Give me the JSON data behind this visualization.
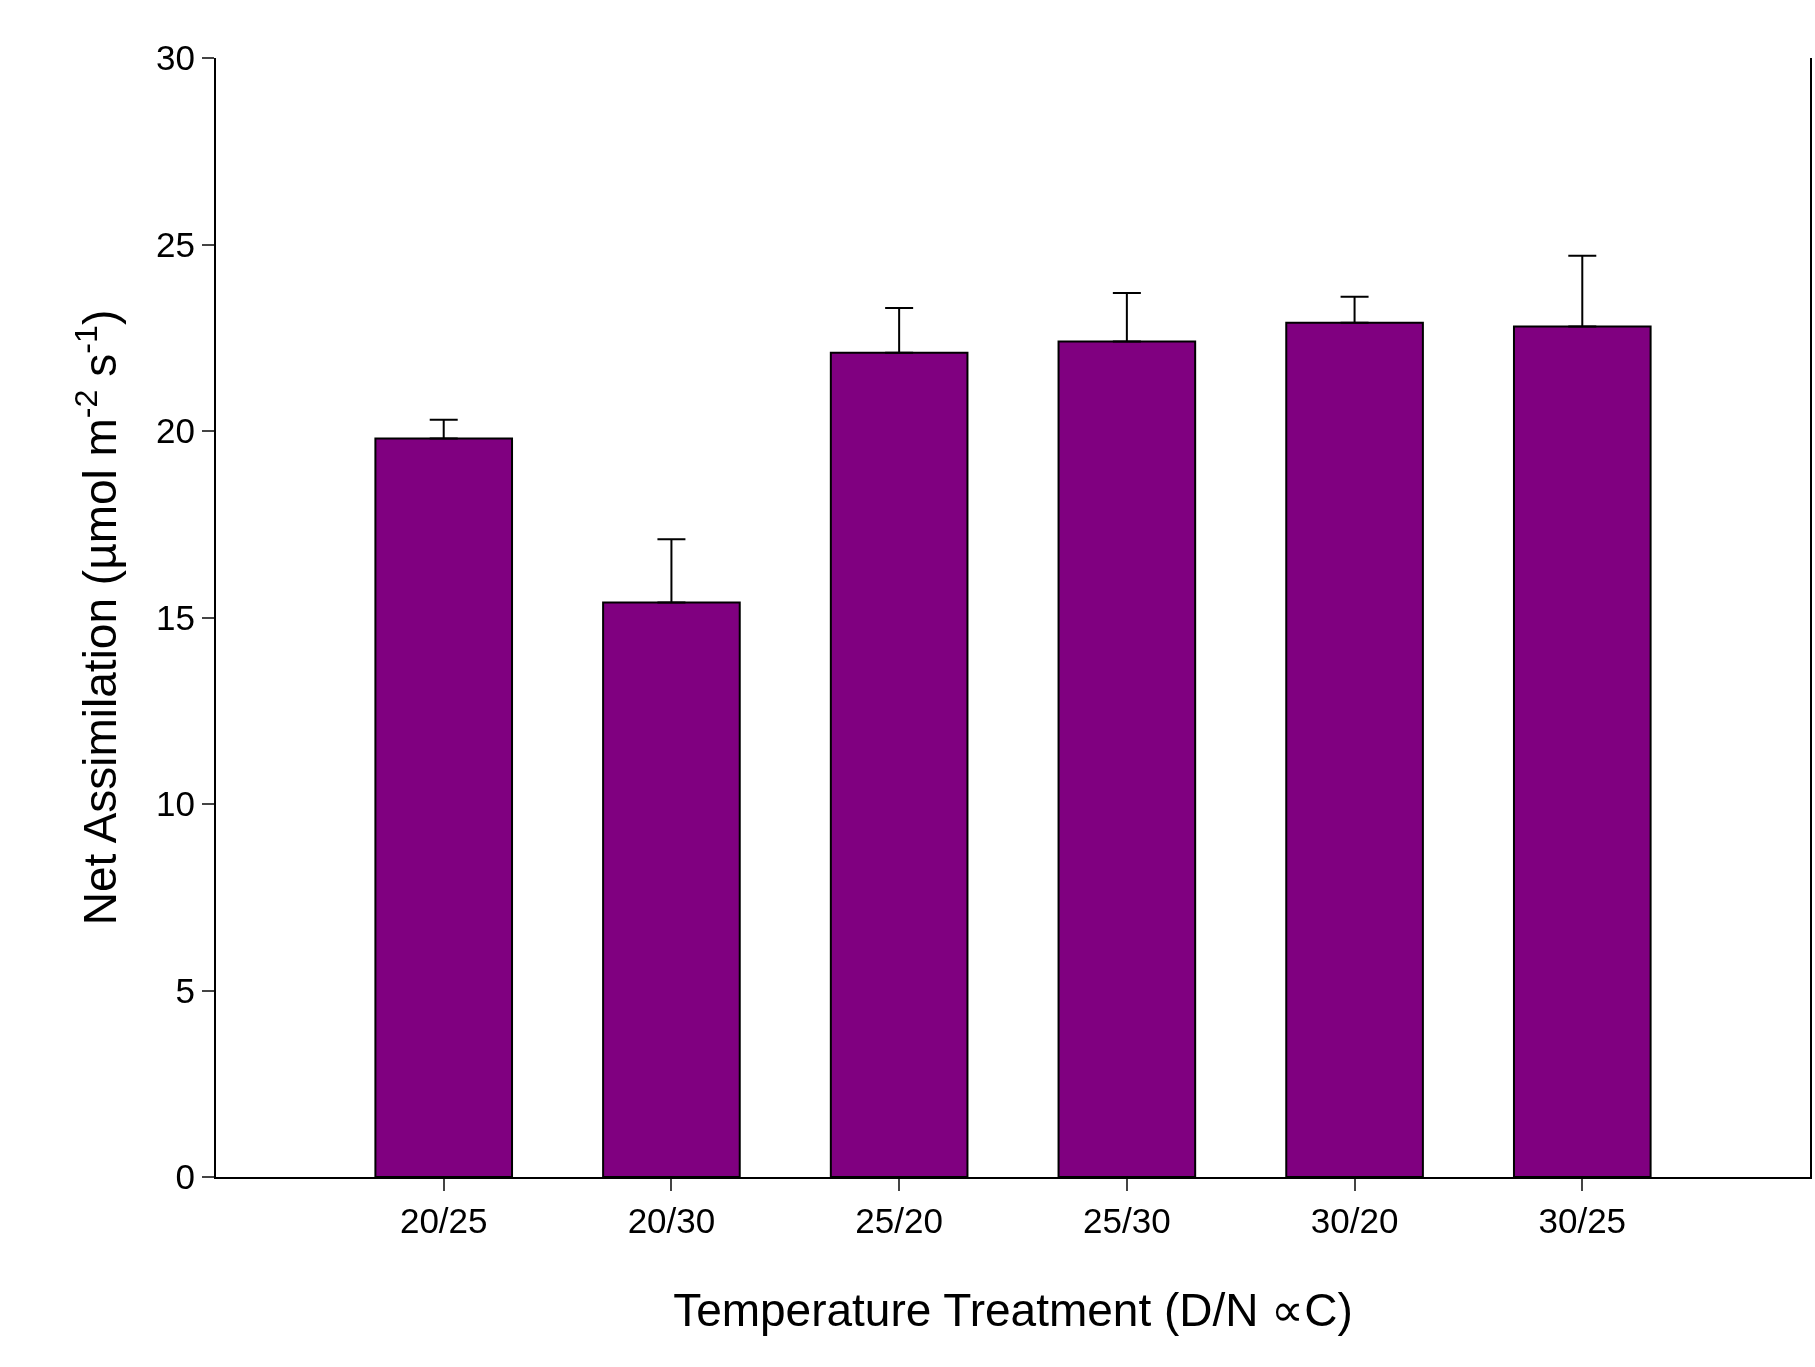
{
  "chart_data": {
    "type": "bar",
    "xlabel": "Temperature Treatment (D/N ∝C)",
    "ylabel": "Net Assimilation (µmol m$^{-2}$ s$^{-1}$)",
    "categories": [
      "20/25",
      "20/30",
      "25/20",
      "25/30",
      "30/20",
      "30/25"
    ],
    "values": [
      19.8,
      15.4,
      22.1,
      22.4,
      22.9,
      22.8
    ],
    "errors": [
      [
        19.8,
        20.3
      ],
      [
        15.4,
        17.1
      ],
      [
        22.1,
        23.3
      ],
      [
        22.4,
        23.7
      ],
      [
        22.9,
        23.6
      ],
      [
        22.8,
        24.7
      ]
    ],
    "color": "#800080",
    "ylim": [
      0,
      30
    ],
    "yticks": [
      0,
      5,
      10,
      15,
      20,
      25,
      30
    ]
  }
}
